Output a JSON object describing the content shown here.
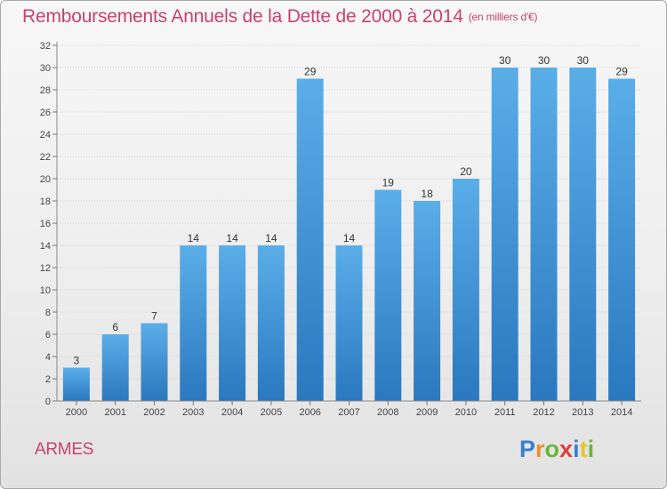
{
  "title": "Remboursements Annuels de la Dette de 2000 à 2014",
  "subtitle": "(en milliers d'€)",
  "place": "ARMES",
  "brand": {
    "letters": [
      "P",
      "r",
      "o",
      "x",
      "i",
      "t",
      "i"
    ],
    "colors": [
      "#3a7fd0",
      "#e8902a",
      "#6bb53a",
      "#e23d3d",
      "#3a7fd0",
      "#e8c52a",
      "#6bb53a"
    ]
  },
  "chart_data": {
    "type": "bar",
    "categories": [
      "2000",
      "2001",
      "2002",
      "2003",
      "2004",
      "2005",
      "2006",
      "2007",
      "2008",
      "2009",
      "2010",
      "2011",
      "2012",
      "2013",
      "2014"
    ],
    "values": [
      3,
      6,
      7,
      14,
      14,
      14,
      29,
      14,
      19,
      18,
      20,
      30,
      30,
      30,
      29
    ],
    "title": "Remboursements Annuels de la Dette de 2000 à 2014",
    "subtitle": "(en milliers d'€)",
    "xlabel": "",
    "ylabel": "",
    "ylim": [
      0,
      32
    ],
    "yticks": [
      0,
      2,
      4,
      6,
      8,
      10,
      12,
      14,
      16,
      18,
      20,
      22,
      24,
      26,
      28,
      30,
      32
    ],
    "grid": true,
    "bar_color": "#3d8fd6"
  }
}
